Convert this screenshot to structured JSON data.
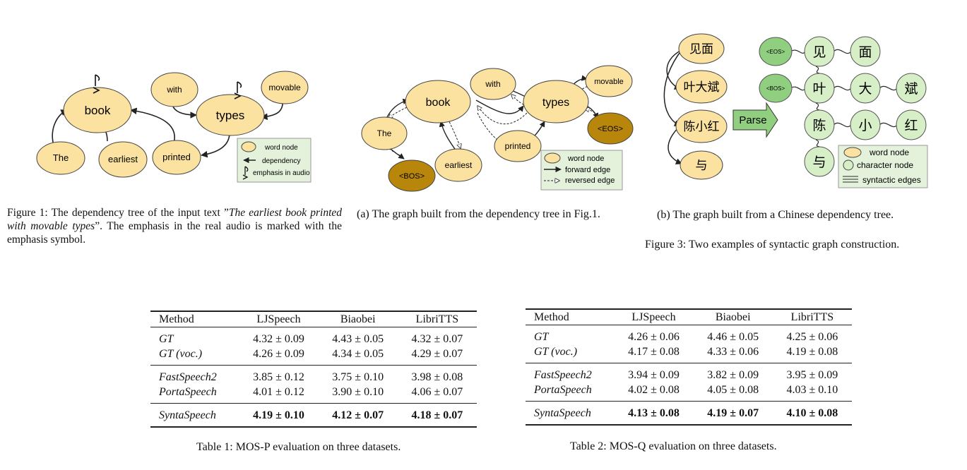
{
  "fig1": {
    "nodes": {
      "the": "The",
      "earliest": "earliest",
      "book": "book",
      "with": "with",
      "types": "types",
      "movable": "movable",
      "printed": "printed"
    },
    "legend": {
      "word_node": "word node",
      "dependency": "dependency",
      "emphasis": "emphasis in audio"
    },
    "caption_prefix": "Figure 1: The dependency tree of the input text ”",
    "caption_italic": "The earliest book printed with movable types",
    "caption_suffix": "”.  The emphasis in the real audio is marked with the emphasis symbol."
  },
  "fig3a": {
    "nodes": {
      "the": "The",
      "bos": "<BOS>",
      "book": "book",
      "earliest": "earliest",
      "with": "with",
      "printed": "printed",
      "types": "types",
      "movable": "movable",
      "eos": "<EOS>"
    },
    "legend": {
      "word_node": "word node",
      "forward": "forward edge",
      "reversed": "reversed edge"
    },
    "caption": "(a) The graph built from the dependency tree in Fig.1."
  },
  "fig3b": {
    "words": [
      "见面",
      "叶大斌",
      "陈小红",
      "与"
    ],
    "parse": "Parse",
    "eos": "<EOS>",
    "bos": "<BOS>",
    "chars": {
      "jian": "见",
      "mian": "面",
      "ye": "叶",
      "da": "大",
      "bin": "斌",
      "chen": "陈",
      "xiao": "小",
      "hong": "红",
      "yu": "与"
    },
    "legend": {
      "word_node": "word node",
      "char_node": "character node",
      "syntactic": "syntactic edges"
    },
    "caption": "(b) The graph built from a Chinese dependency tree."
  },
  "fig3_caption": "Figure 3: Two examples of syntactic graph construction.",
  "table1": {
    "headers": [
      "Method",
      "LJSpeech",
      "Biaobei",
      "LibriTTS"
    ],
    "rows": [
      [
        "GT",
        "4.32 ± 0.09",
        "4.43 ± 0.05",
        "4.32 ± 0.07"
      ],
      [
        "GT (voc.)",
        "4.26 ± 0.09",
        "4.34 ± 0.05",
        "4.29 ± 0.07"
      ],
      [
        "FastSpeech2",
        "3.85 ± 0.12",
        "3.75 ± 0.10",
        "3.98 ± 0.08"
      ],
      [
        "PortaSpeech",
        "4.01 ± 0.12",
        "3.90 ± 0.10",
        "4.06 ± 0.07"
      ],
      [
        "SyntaSpeech",
        "4.19 ± 0.10",
        "4.12 ± 0.07",
        "4.18 ± 0.07"
      ]
    ],
    "caption": "Table 1: MOS-P evaluation on three datasets."
  },
  "table2": {
    "headers": [
      "Method",
      "LJSpeech",
      "Biaobei",
      "LibriTTS"
    ],
    "rows": [
      [
        "GT",
        "4.26 ± 0.06",
        "4.46 ± 0.05",
        "4.25 ± 0.06"
      ],
      [
        "GT (voc.)",
        "4.17 ± 0.08",
        "4.33 ± 0.06",
        "4.19 ± 0.08"
      ],
      [
        "FastSpeech2",
        "3.94 ± 0.09",
        "3.82 ± 0.09",
        "3.95 ± 0.09"
      ],
      [
        "PortaSpeech",
        "4.02 ± 0.08",
        "4.05 ± 0.08",
        "4.03 ± 0.10"
      ],
      [
        "SyntaSpeech",
        "4.13 ± 0.08",
        "4.19 ± 0.07",
        "4.10 ± 0.08"
      ]
    ],
    "caption": "Table 2: MOS-Q evaluation on three datasets."
  },
  "colors": {
    "word_node": "#fce2a0",
    "dark_node": "#b8860b",
    "char_node": "#d6efc6",
    "start_node": "#8fcf7f",
    "legend_bg": "#e4f2dc",
    "edge": "#333333"
  }
}
